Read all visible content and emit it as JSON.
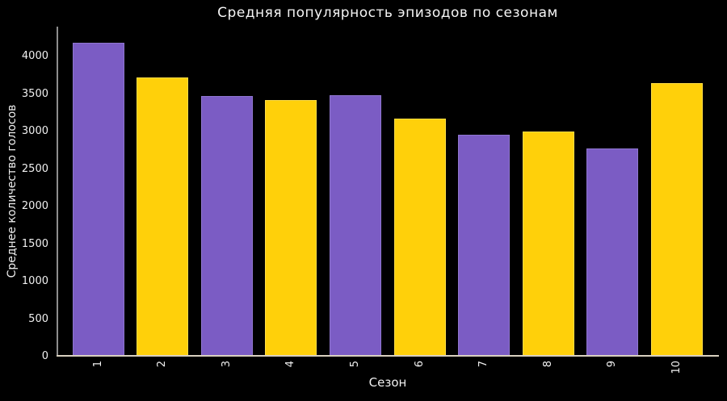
{
  "page": {
    "background": "#000000",
    "text_color": "#f0f0f0"
  },
  "chart_data": {
    "type": "bar",
    "style": "xkcd-sketch",
    "title": "Средняя популярность эпизодов по сезонам",
    "xlabel": "Сезон",
    "ylabel": "Среднее количество голосов",
    "categories": [
      "1",
      "2",
      "3",
      "4",
      "5",
      "6",
      "7",
      "8",
      "9",
      "10"
    ],
    "values": [
      4180,
      3720,
      3480,
      3420,
      3490,
      3170,
      2960,
      3000,
      2780,
      3650
    ],
    "yticks": [
      0,
      500,
      1000,
      1500,
      2000,
      2500,
      3000,
      3500,
      4000
    ],
    "ylim": [
      0,
      4400
    ],
    "xtick_rotation": 90,
    "grid": false,
    "legend": false,
    "bar_colors": [
      {
        "fill": "#7B5CC4",
        "edge": "#8F76CF"
      },
      {
        "fill": "#FFD00A",
        "edge": "#FFDC45"
      }
    ],
    "axis_color_y": "#8e8e8e",
    "axis_color_x": "#d9d0bf"
  }
}
